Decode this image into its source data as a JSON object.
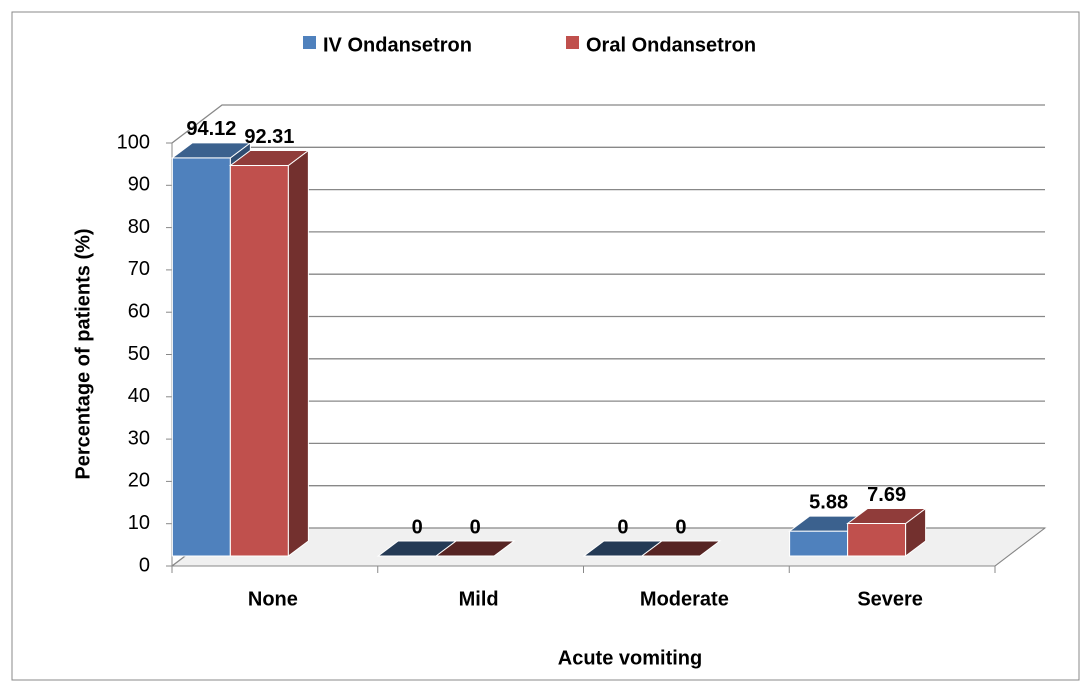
{
  "chart_data": {
    "type": "bar3d",
    "x_label": "Acute vomiting",
    "y_label": "Percentage of patients (%)",
    "categories": [
      "None",
      "Mild",
      "Moderate",
      "Severe"
    ],
    "series": [
      {
        "name": "IV Ondansetron",
        "color": "#4f81bd",
        "values": [
          94.12,
          0,
          0,
          5.88
        ]
      },
      {
        "name": "Oral Ondansetron",
        "color": "#c0504d",
        "values": [
          92.31,
          0,
          0,
          7.69
        ]
      }
    ],
    "ylim": [
      0,
      100
    ],
    "yticks": [
      0,
      10,
      20,
      30,
      40,
      50,
      60,
      70,
      80,
      90,
      100
    ],
    "grid": true,
    "legend": "top"
  }
}
